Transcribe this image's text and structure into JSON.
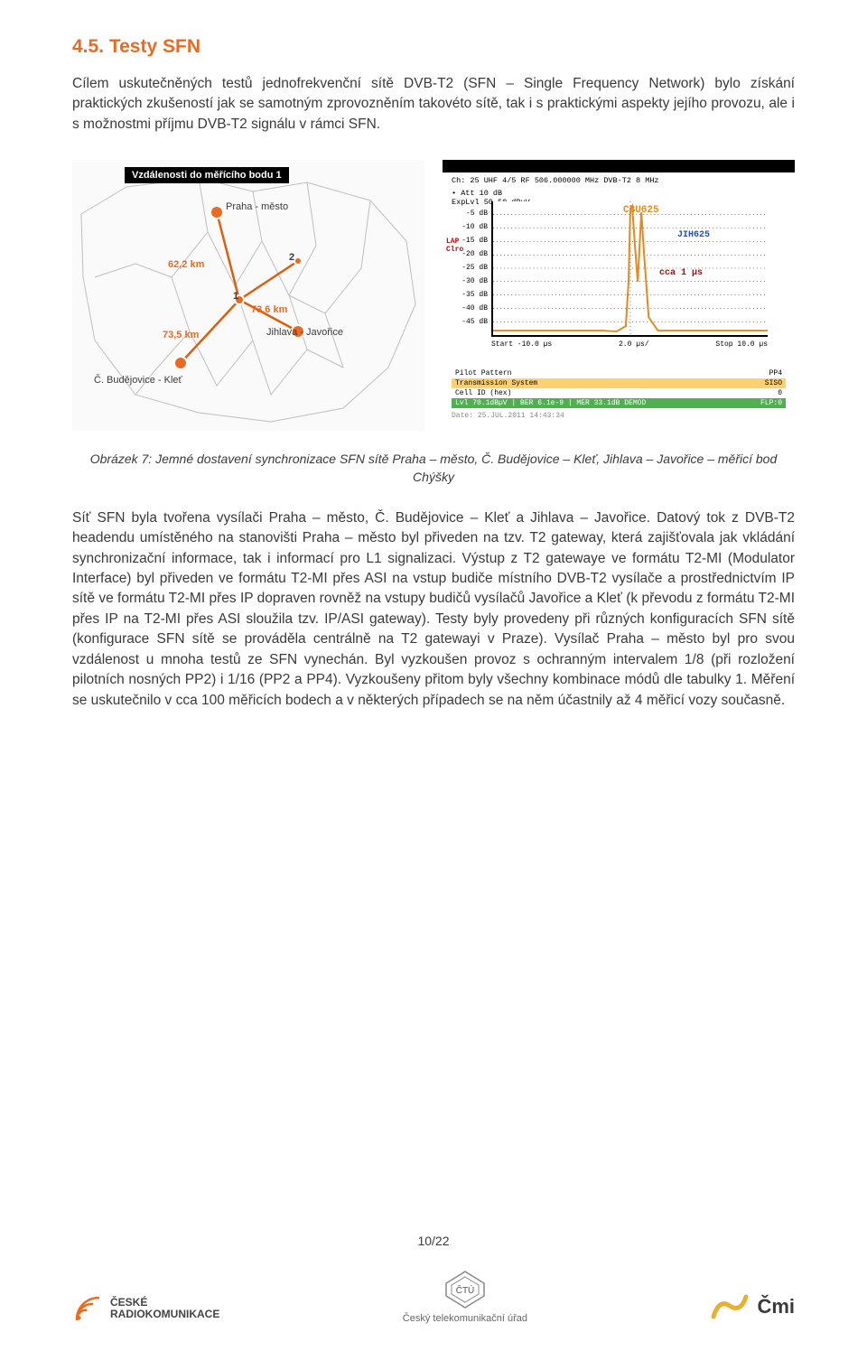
{
  "colors": {
    "accent": "#ec6a1f",
    "text": "#3a3a3a",
    "map_line": "#db5f0f",
    "map_region": "#d8d8d8",
    "scope_orange": "#e58a1f",
    "scope_blue": "#2050c0",
    "scope_red": "#c00000",
    "scope_hl": "#ffd070",
    "scope_green": "#50b050"
  },
  "heading": "4.5.  Testy SFN",
  "intro": "Cílem uskutečněných testů jednofrekvenční sítě DVB-T2 (SFN – Single Frequency Network) bylo získání praktických zkušeností jak se samotným zprovozněním takovéto sítě, tak i s praktickými aspekty jejího provozu, ale i s možnostmi příjmu DVB-T2 signálu v rámci SFN.",
  "map": {
    "title_box": "Vzdálenosti do měřícího bodu 1",
    "labels": {
      "praha": "Praha - město",
      "jihlava": "Jihlava - Javořice",
      "budejovice": "Č. Budějovice - Kleť"
    },
    "points": {
      "pt1": "1",
      "pt2": "2"
    },
    "distances": {
      "d1": "62,2 km",
      "d2": "73,6 km",
      "d3": "73,5 km"
    }
  },
  "scope": {
    "ch_line": "Ch: 25  UHF 4/5  RF 506.000000 MHz  DVB-T2  8 MHz",
    "att": "• Att  10 dB",
    "exp": "  ExpLvl 50.50 dBµV",
    "lap": "LAP",
    "clro": "Clro",
    "cbu": "CBU625",
    "jih": "JIH625",
    "cca": "cca 1 µs",
    "y_ticks": [
      "-5 dB",
      "-10 dB",
      "-15 dB",
      "-20 dB",
      "-25 dB",
      "-30 dB",
      "-35 dB",
      "-40 dB",
      "-45 dB"
    ],
    "time_left": "Start -10.0 µs",
    "time_mid": "2.0 µs/",
    "time_right": "Stop 10.0 µs",
    "rows": [
      {
        "l": "Pilot Pattern",
        "r": "PP4",
        "cls": ""
      },
      {
        "l": "Transmission System",
        "r": "SISO",
        "cls": "sc-hl"
      },
      {
        "l": "Cell ID (hex)",
        "r": "0",
        "cls": ""
      },
      {
        "l": "Lvl 70.1dBµV | BER 6.1e-9 | MER 33.1dB   DEMOD",
        "r": "FLP:0",
        "cls": "sc-gr"
      }
    ],
    "date": "Date: 25.JUL.2011  14:43:34"
  },
  "caption_l1": "Obrázek 7: Jemné dostavení synchronizace SFN sítě Praha – město, Č. Budějovice – Kleť, Jihlava – Javořice – měřicí bod",
  "caption_l2": "Chýšky",
  "body": "Síť SFN byla tvořena vysílači Praha – město, Č. Budějovice – Kleť a Jihlava – Javořice. Datový tok z DVB-T2 headendu umístěného na stanovišti Praha – město byl přiveden na tzv. T2 gateway, která zajišťovala jak vkládání synchronizační informace, tak i informací pro L1 signalizaci. Výstup z T2 gatewaye ve formátu T2-MI (Modulator Interface) byl přiveden ve formátu T2-MI přes ASI na vstup budiče místního DVB-T2 vysílače a prostřednictvím IP sítě ve formátu T2-MI přes IP dopraven rovněž na vstupy budičů vysílačů Javořice a Kleť (k převodu z formátu T2-MI přes IP na T2-MI přes ASI sloužila tzv. IP/ASI gateway). Testy byly provedeny při různých konfiguracích SFN sítě (konfigurace SFN sítě se prováděla centrálně na T2 gatewayi v Praze). Vysílač Praha – město byl pro svou vzdálenost u mnoha testů ze SFN vynechán. Byl vyzkoušen provoz s ochranným intervalem 1/8 (při rozložení pilotních nosných PP2) i 1/16 (PP2 a PP4). Vyzkoušeny přitom byly všechny kombinace módů dle tabulky 1. Měření se uskutečnilo v cca 100 měřicích bodech a v některých případech se na něm účastnily až 4 měřicí vozy současně.",
  "footer": {
    "pagenum": "10/22",
    "cr_line1": "ČESKÉ",
    "cr_line2": "RADIOKOMUNIKACE",
    "ctu_abbr": "ČTÚ",
    "ctu_name": "Český telekomunikační úřad",
    "cmi": "Čmi"
  }
}
